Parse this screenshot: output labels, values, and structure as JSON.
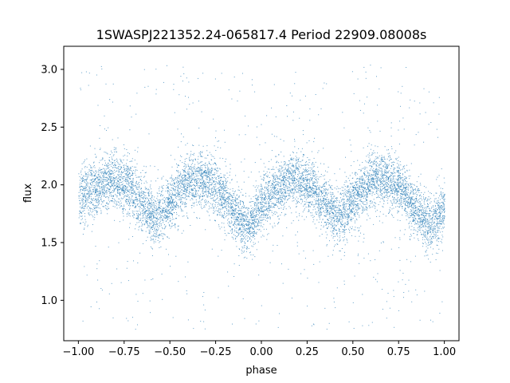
{
  "chart_data": {
    "type": "scatter",
    "title": "1SWASPJ221352.24-065817.4 Period 22909.08008s",
    "xlabel": "phase",
    "ylabel": "flux",
    "xlim": [
      -1.08,
      1.08
    ],
    "ylim": [
      0.65,
      3.2
    ],
    "xticks": [
      -1.0,
      -0.75,
      -0.5,
      -0.25,
      0.0,
      0.25,
      0.5,
      0.75,
      1.0
    ],
    "xtick_labels": [
      "−1.00",
      "−0.75",
      "−0.50",
      "−0.25",
      "0.00",
      "0.25",
      "0.50",
      "0.75",
      "1.00"
    ],
    "yticks": [
      1.0,
      1.5,
      2.0,
      2.5,
      3.0
    ],
    "ytick_labels": [
      "1.0",
      "1.5",
      "2.0",
      "2.5",
      "3.0"
    ],
    "grid": false,
    "point_color": "#1f77b4",
    "x_range": [
      -1.0,
      1.0
    ],
    "profile": {
      "phase": [
        -1.0,
        -0.92,
        -0.82,
        -0.72,
        -0.62,
        -0.58,
        -0.5,
        -0.4,
        -0.3,
        -0.2,
        -0.12,
        -0.08,
        0.0,
        0.1,
        0.18,
        0.28,
        0.38,
        0.42,
        0.5,
        0.6,
        0.68,
        0.78,
        0.88,
        0.92,
        1.0
      ],
      "flux": [
        1.88,
        1.98,
        2.06,
        1.98,
        1.78,
        1.72,
        1.86,
        2.04,
        2.04,
        1.9,
        1.7,
        1.62,
        1.82,
        1.98,
        2.06,
        1.98,
        1.78,
        1.72,
        1.86,
        2.04,
        2.06,
        1.94,
        1.72,
        1.64,
        1.8
      ]
    },
    "scatter_sigma": 0.12,
    "outlier_range": [
      0.75,
      3.05
    ]
  }
}
